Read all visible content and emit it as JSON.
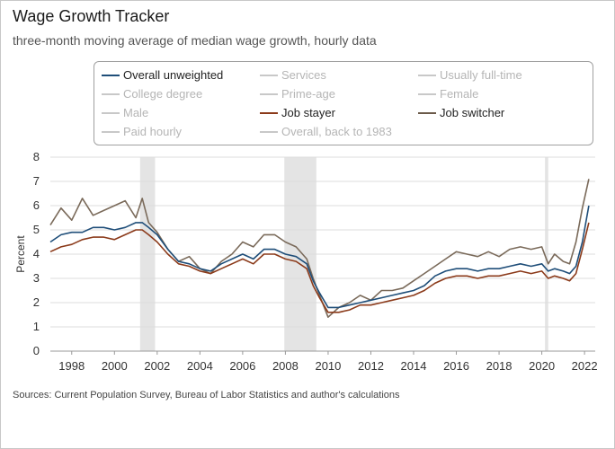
{
  "title": "Wage Growth Tracker",
  "subtitle": "three-month moving average of median wage growth, hourly data",
  "source": "Sources: Current Population Survey, Bureau of Labor Statistics and author's calculations",
  "legend": [
    {
      "name": "Overall unweighted",
      "active": true,
      "color": "#1f4e79"
    },
    {
      "name": "Services",
      "active": false,
      "color": "#c8c8c8"
    },
    {
      "name": "Usually full-time",
      "active": false,
      "color": "#c8c8c8"
    },
    {
      "name": "College degree",
      "active": false,
      "color": "#c8c8c8"
    },
    {
      "name": "Prime-age",
      "active": false,
      "color": "#c8c8c8"
    },
    {
      "name": "Female",
      "active": false,
      "color": "#c8c8c8"
    },
    {
      "name": "Male",
      "active": false,
      "color": "#c8c8c8"
    },
    {
      "name": "Job stayer",
      "active": true,
      "color": "#8b3a1a"
    },
    {
      "name": "Job switcher",
      "active": true,
      "color": "#6b5a4a"
    },
    {
      "name": "Paid hourly",
      "active": false,
      "color": "#c8c8c8"
    },
    {
      "name": "Overall, back to 1983",
      "active": false,
      "color": "#c8c8c8"
    }
  ],
  "chart_data": {
    "type": "line",
    "ylabel": "Percent",
    "ylim": [
      0,
      8
    ],
    "xlim": [
      1997,
      2022.5
    ],
    "grid": true,
    "xticks": [
      "1998",
      "2000",
      "2002",
      "2004",
      "2006",
      "2008",
      "2010",
      "2012",
      "2014",
      "2016",
      "2018",
      "2020",
      "2022"
    ],
    "yticks": [
      "0",
      "1",
      "2",
      "3",
      "4",
      "5",
      "6",
      "7",
      "8"
    ],
    "recessions": [
      [
        2001.2,
        2001.9
      ],
      [
        2007.95,
        2009.45
      ],
      [
        2020.15,
        2020.3
      ]
    ],
    "series": [
      {
        "name": "Job switcher",
        "color": "#7a6a5a",
        "x": [
          1997.0,
          1997.5,
          1998.0,
          1998.5,
          1999.0,
          1999.5,
          2000.0,
          2000.5,
          2001.0,
          2001.3,
          2001.6,
          2002.0,
          2002.5,
          2003.0,
          2003.5,
          2004.0,
          2004.5,
          2005.0,
          2005.5,
          2006.0,
          2006.5,
          2007.0,
          2007.5,
          2008.0,
          2008.5,
          2009.0,
          2009.3,
          2009.6,
          2010.0,
          2010.5,
          2011.0,
          2011.5,
          2012.0,
          2012.5,
          2013.0,
          2013.5,
          2014.0,
          2014.5,
          2015.0,
          2015.5,
          2016.0,
          2016.5,
          2017.0,
          2017.5,
          2018.0,
          2018.5,
          2019.0,
          2019.5,
          2020.0,
          2020.3,
          2020.6,
          2021.0,
          2021.3,
          2021.6,
          2021.9,
          2022.2
        ],
        "values": [
          5.2,
          5.9,
          5.4,
          6.3,
          5.6,
          5.8,
          6.0,
          6.2,
          5.5,
          6.3,
          5.3,
          4.9,
          4.2,
          3.7,
          3.9,
          3.4,
          3.2,
          3.7,
          4.0,
          4.5,
          4.3,
          4.8,
          4.8,
          4.5,
          4.3,
          3.8,
          3.0,
          2.3,
          1.4,
          1.8,
          2.0,
          2.3,
          2.1,
          2.5,
          2.5,
          2.6,
          2.9,
          3.2,
          3.5,
          3.8,
          4.1,
          4.0,
          3.9,
          4.1,
          3.9,
          4.2,
          4.3,
          4.2,
          4.3,
          3.6,
          4.0,
          3.7,
          3.6,
          4.5,
          5.9,
          7.1
        ]
      },
      {
        "name": "Overall unweighted",
        "color": "#1f4e79",
        "x": [
          1997.0,
          1997.5,
          1998.0,
          1998.5,
          1999.0,
          1999.5,
          2000.0,
          2000.5,
          2001.0,
          2001.3,
          2001.6,
          2002.0,
          2002.5,
          2003.0,
          2003.5,
          2004.0,
          2004.5,
          2005.0,
          2005.5,
          2006.0,
          2006.5,
          2007.0,
          2007.5,
          2008.0,
          2008.5,
          2009.0,
          2009.3,
          2009.6,
          2010.0,
          2010.5,
          2011.0,
          2011.5,
          2012.0,
          2012.5,
          2013.0,
          2013.5,
          2014.0,
          2014.5,
          2015.0,
          2015.5,
          2016.0,
          2016.5,
          2017.0,
          2017.5,
          2018.0,
          2018.5,
          2019.0,
          2019.5,
          2020.0,
          2020.3,
          2020.6,
          2021.0,
          2021.3,
          2021.6,
          2021.9,
          2022.2
        ],
        "values": [
          4.5,
          4.8,
          4.9,
          4.9,
          5.1,
          5.1,
          5.0,
          5.1,
          5.3,
          5.3,
          5.1,
          4.8,
          4.2,
          3.7,
          3.6,
          3.4,
          3.3,
          3.6,
          3.8,
          4.0,
          3.8,
          4.2,
          4.2,
          4.0,
          3.9,
          3.6,
          2.9,
          2.4,
          1.8,
          1.8,
          1.9,
          2.0,
          2.1,
          2.2,
          2.3,
          2.4,
          2.5,
          2.7,
          3.1,
          3.3,
          3.4,
          3.4,
          3.3,
          3.4,
          3.4,
          3.5,
          3.6,
          3.5,
          3.6,
          3.3,
          3.4,
          3.3,
          3.2,
          3.5,
          4.5,
          6.0
        ]
      },
      {
        "name": "Job stayer",
        "color": "#8b3a1a",
        "x": [
          1997.0,
          1997.5,
          1998.0,
          1998.5,
          1999.0,
          1999.5,
          2000.0,
          2000.5,
          2001.0,
          2001.3,
          2001.6,
          2002.0,
          2002.5,
          2003.0,
          2003.5,
          2004.0,
          2004.5,
          2005.0,
          2005.5,
          2006.0,
          2006.5,
          2007.0,
          2007.5,
          2008.0,
          2008.5,
          2009.0,
          2009.3,
          2009.6,
          2010.0,
          2010.5,
          2011.0,
          2011.5,
          2012.0,
          2012.5,
          2013.0,
          2013.5,
          2014.0,
          2014.5,
          2015.0,
          2015.5,
          2016.0,
          2016.5,
          2017.0,
          2017.5,
          2018.0,
          2018.5,
          2019.0,
          2019.5,
          2020.0,
          2020.3,
          2020.6,
          2021.0,
          2021.3,
          2021.6,
          2021.9,
          2022.2
        ],
        "values": [
          4.1,
          4.3,
          4.4,
          4.6,
          4.7,
          4.7,
          4.6,
          4.8,
          5.0,
          5.0,
          4.8,
          4.5,
          4.0,
          3.6,
          3.5,
          3.3,
          3.2,
          3.4,
          3.6,
          3.8,
          3.6,
          4.0,
          4.0,
          3.8,
          3.7,
          3.4,
          2.7,
          2.2,
          1.6,
          1.6,
          1.7,
          1.9,
          1.9,
          2.0,
          2.1,
          2.2,
          2.3,
          2.5,
          2.8,
          3.0,
          3.1,
          3.1,
          3.0,
          3.1,
          3.1,
          3.2,
          3.3,
          3.2,
          3.3,
          3.0,
          3.1,
          3.0,
          2.9,
          3.2,
          4.2,
          5.3
        ]
      }
    ]
  }
}
